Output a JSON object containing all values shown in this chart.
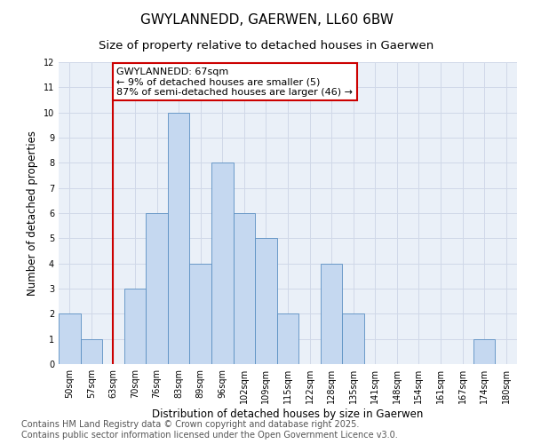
{
  "title": "GWYLANNEDD, GAERWEN, LL60 6BW",
  "subtitle": "Size of property relative to detached houses in Gaerwen",
  "xlabel": "Distribution of detached houses by size in Gaerwen",
  "ylabel": "Number of detached properties",
  "bins": [
    "50sqm",
    "57sqm",
    "63sqm",
    "70sqm",
    "76sqm",
    "83sqm",
    "89sqm",
    "96sqm",
    "102sqm",
    "109sqm",
    "115sqm",
    "122sqm",
    "128sqm",
    "135sqm",
    "141sqm",
    "148sqm",
    "154sqm",
    "161sqm",
    "167sqm",
    "174sqm",
    "180sqm"
  ],
  "values": [
    2,
    1,
    0,
    3,
    6,
    10,
    4,
    8,
    6,
    5,
    2,
    0,
    4,
    2,
    0,
    0,
    0,
    0,
    0,
    1,
    0
  ],
  "bar_color": "#c5d8f0",
  "bar_edge_color": "#5a8fc2",
  "vline_x_index": 2,
  "vline_color": "#cc0000",
  "annotation_text": "GWYLANNEDD: 67sqm\n← 9% of detached houses are smaller (5)\n87% of semi-detached houses are larger (46) →",
  "annotation_box_color": "white",
  "annotation_box_edge": "#cc0000",
  "ylim": [
    0,
    12
  ],
  "yticks": [
    0,
    1,
    2,
    3,
    4,
    5,
    6,
    7,
    8,
    9,
    10,
    11,
    12
  ],
  "grid_color": "#d0d8e8",
  "background_color": "#eaf0f8",
  "footer": "Contains HM Land Registry data © Crown copyright and database right 2025.\nContains public sector information licensed under the Open Government Licence v3.0.",
  "title_fontsize": 11,
  "subtitle_fontsize": 9.5,
  "footer_fontsize": 7,
  "annot_fontsize": 8
}
